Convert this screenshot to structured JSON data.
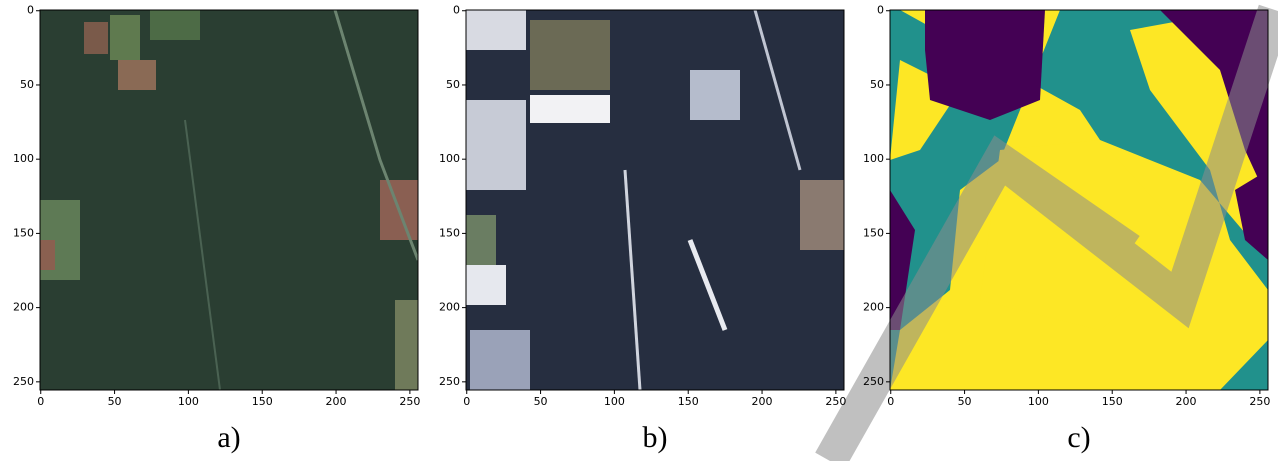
{
  "chart_data": [
    {
      "type": "image",
      "caption": "a)",
      "xlim": [
        -0.5,
        255.5
      ],
      "ylim": [
        255.5,
        -0.5
      ],
      "xticks": [
        0,
        50,
        100,
        150,
        200,
        250
      ],
      "yticks": [
        0,
        50,
        100,
        150,
        200,
        250
      ]
    },
    {
      "type": "image",
      "caption": "b)",
      "xlim": [
        -0.5,
        255.5
      ],
      "ylim": [
        255.5,
        -0.5
      ],
      "xticks": [
        0,
        50,
        100,
        150,
        200,
        250
      ],
      "yticks": [
        0,
        50,
        100,
        150,
        200,
        250
      ]
    },
    {
      "type": "image",
      "caption": "c)",
      "xlim": [
        -0.5,
        255.5
      ],
      "ylim": [
        255.5,
        -0.5
      ],
      "xticks": [
        0,
        50,
        100,
        150,
        200,
        250
      ],
      "yticks": [
        0,
        50,
        100,
        150,
        200,
        250
      ]
    }
  ]
}
